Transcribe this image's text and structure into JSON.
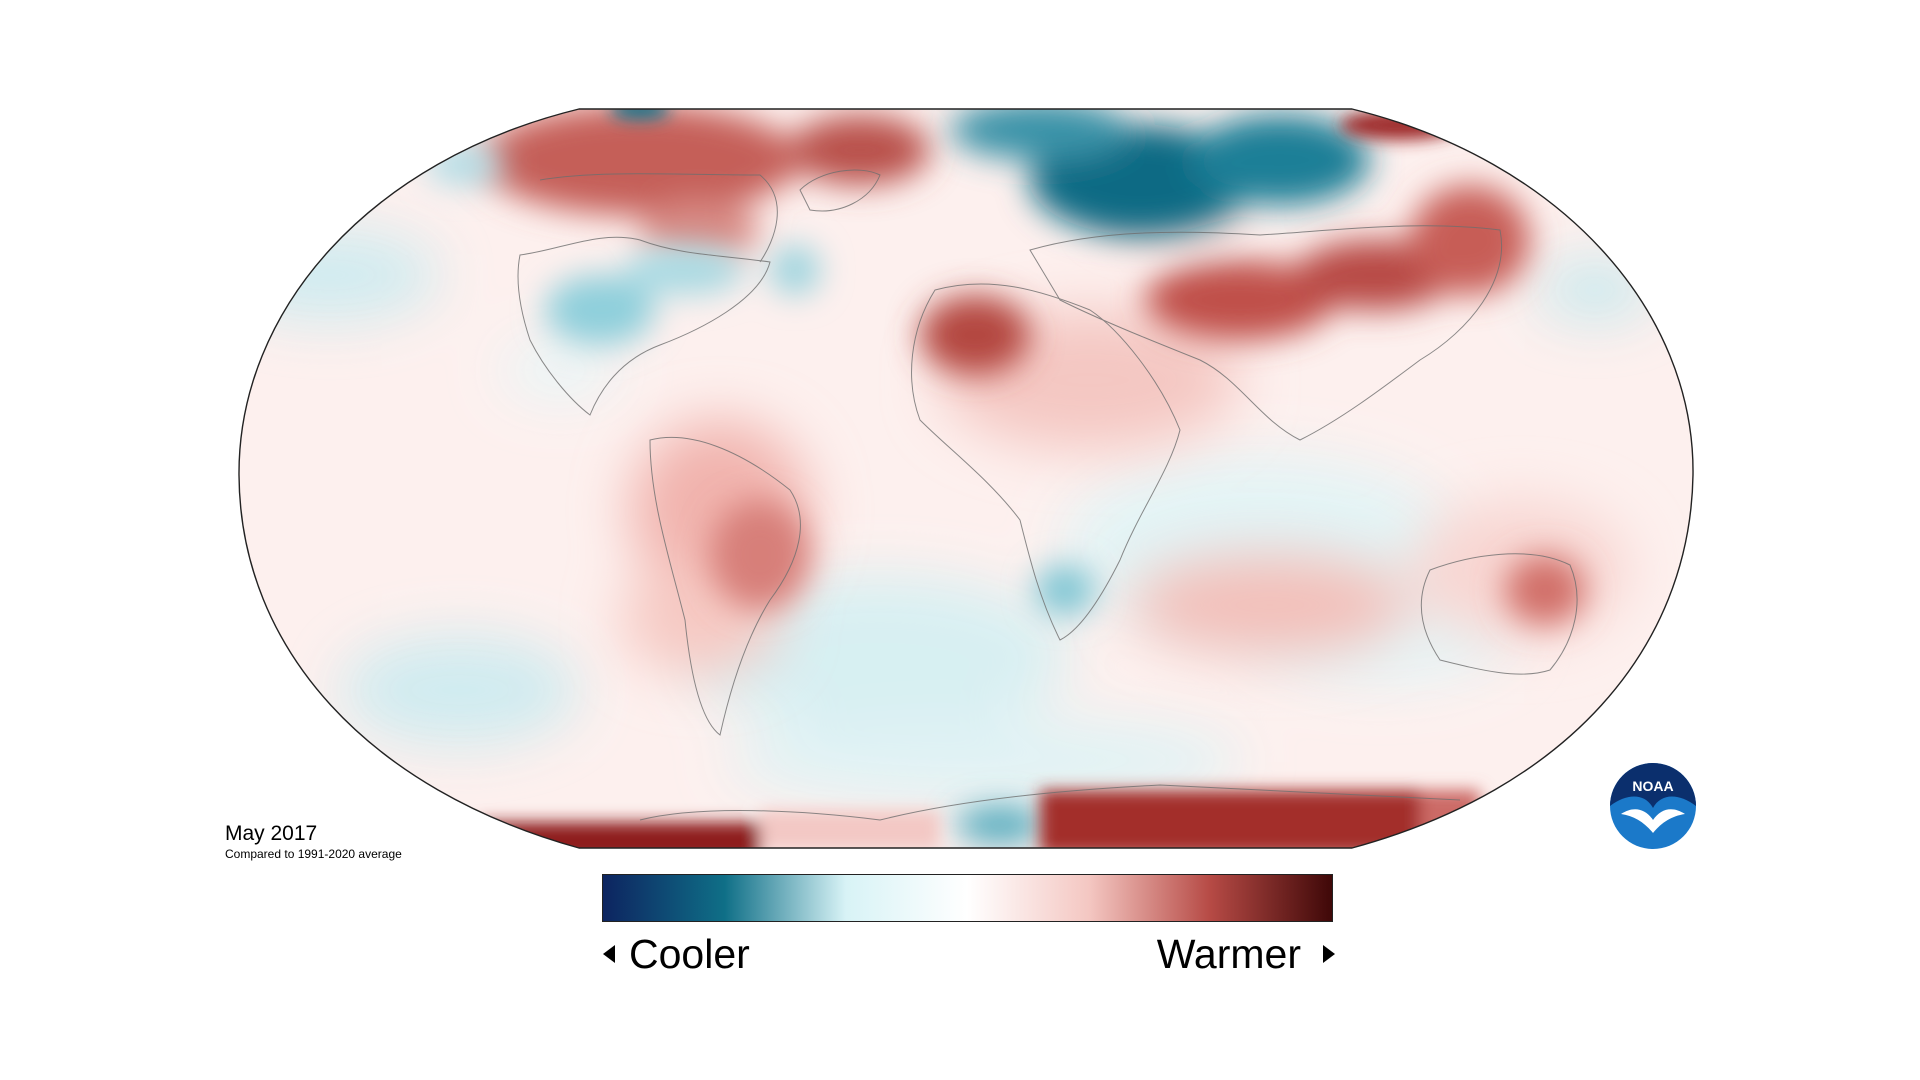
{
  "caption": {
    "title": "May 2017",
    "subtitle": "Compared to 1991-2020 average"
  },
  "legend": {
    "cool_label": "Cooler",
    "warm_label": "Warmer",
    "gradient": [
      "#0d2460",
      "#0f6f87",
      "#d8f3f6",
      "#ffffff",
      "#f4c7c2",
      "#b64a45",
      "#3f0808"
    ]
  },
  "logo": {
    "text": "NOAA",
    "icon": "noaa-logo"
  },
  "colors": {
    "base_warm": "#fbe7e4",
    "cool": "#d9f0f3",
    "warm": "#c04a47",
    "strong_cool": "#0c6d86",
    "strong_warm": "#8a1f1f"
  }
}
